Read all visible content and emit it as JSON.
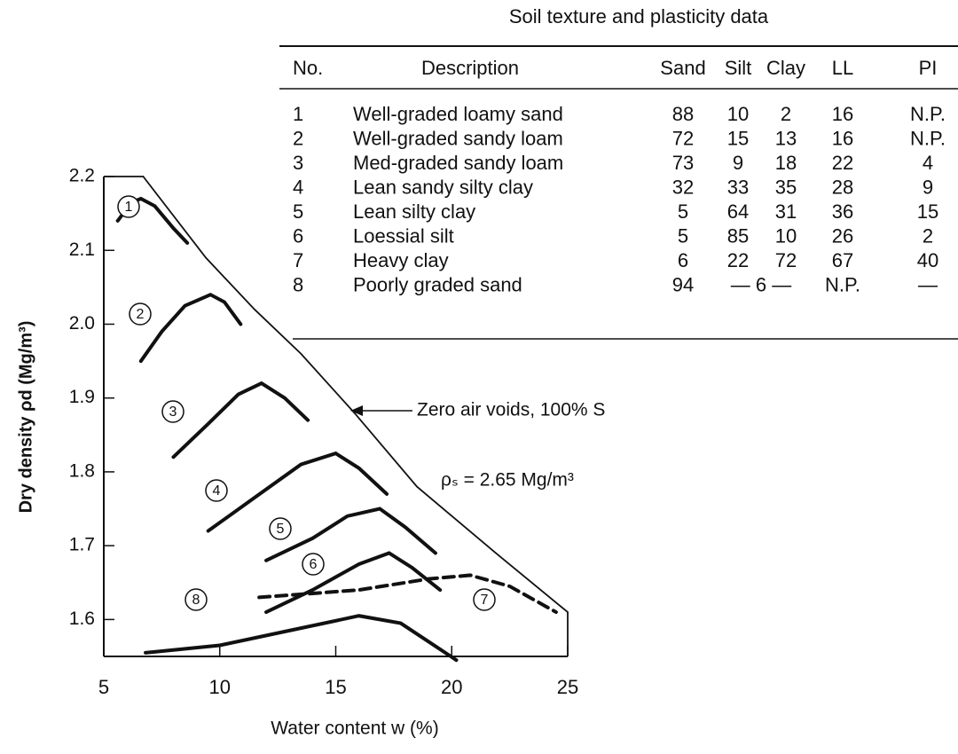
{
  "chart_data": {
    "type": "line",
    "xlabel": "Water content w (%)",
    "ylabel": "Dry density ρd (Mg/m³)",
    "annotation": "ρₛ = 2.65 Mg/m³",
    "xlim": [
      5,
      25
    ],
    "ylim": [
      1.55,
      2.2
    ],
    "xticks": [
      5,
      10,
      15,
      20,
      25
    ],
    "yticks": [
      1.6,
      1.7,
      1.8,
      1.9,
      {
        "value": 2,
        "label": "2.0"
      },
      2.1,
      2.2
    ],
    "series": [
      {
        "name": "1",
        "color": "#111",
        "x": [
          5.6,
          6.2,
          6.6,
          7.2,
          8.0,
          8.6
        ],
        "values": [
          2.14,
          2.165,
          2.17,
          2.16,
          2.13,
          2.11
        ]
      },
      {
        "name": "2",
        "color": "#111",
        "x": [
          6.6,
          7.5,
          8.5,
          9.6,
          10.2,
          10.9
        ],
        "values": [
          1.95,
          1.99,
          2.025,
          2.04,
          2.03,
          2.0
        ]
      },
      {
        "name": "3",
        "color": "#111",
        "x": [
          8,
          9.5,
          10.8,
          11.8,
          12.8,
          13.8
        ],
        "values": [
          1.82,
          1.865,
          1.905,
          1.92,
          1.9,
          1.87
        ]
      },
      {
        "name": "4",
        "color": "#111",
        "x": [
          9.5,
          11.5,
          13.5,
          15,
          16,
          17.2
        ],
        "values": [
          1.72,
          1.765,
          1.81,
          1.825,
          1.805,
          1.77
        ]
      },
      {
        "name": "5",
        "color": "#111",
        "x": [
          12,
          14,
          15.5,
          16.9,
          18,
          19.3
        ],
        "values": [
          1.68,
          1.71,
          1.74,
          1.75,
          1.725,
          1.69
        ]
      },
      {
        "name": "6",
        "color": "#111",
        "x": [
          12,
          14,
          16,
          17.3,
          18.3,
          19.5
        ],
        "values": [
          1.61,
          1.64,
          1.675,
          1.69,
          1.67,
          1.64
        ]
      },
      {
        "name": "7",
        "color": "#111",
        "dashed": true,
        "x": [
          11.7,
          16,
          19,
          20.8,
          22.5,
          24.5
        ],
        "values": [
          1.63,
          1.64,
          1.655,
          1.66,
          1.645,
          1.61
        ]
      },
      {
        "name": "8",
        "color": "#111",
        "x": [
          6.8,
          10,
          13,
          16,
          17.8,
          19,
          20.2
        ],
        "values": [
          1.555,
          1.565,
          1.585,
          1.605,
          1.595,
          1.57,
          1.545
        ]
      },
      {
        "name": "Zero air voids, 100% S",
        "color": "#111",
        "thin": true,
        "x": [
          6.7,
          9.4,
          11.5,
          13.5,
          15.8,
          18.5,
          21.9,
          25
        ],
        "values": [
          2.2,
          2.09,
          2.02,
          1.96,
          1.88,
          1.78,
          1.69,
          1.61
        ]
      }
    ]
  },
  "table": {
    "title": "Soil texture and plasticity data",
    "header": [
      "No.",
      "Description",
      "Sand",
      "Silt",
      "Clay",
      "LL",
      "PI"
    ],
    "rows": [
      [
        "1",
        "Well-graded loamy sand",
        "88",
        "10",
        "2",
        "16",
        "N.P."
      ],
      [
        "2",
        "Well-graded sandy loam",
        "72",
        "15",
        "13",
        "16",
        "N.P."
      ],
      [
        "3",
        "Med-graded sandy loam",
        "73",
        "9",
        "18",
        "22",
        "4"
      ],
      [
        "4",
        "Lean sandy silty clay",
        "32",
        "33",
        "35",
        "28",
        "9"
      ],
      [
        "5",
        "Lean silty clay",
        "5",
        "64",
        "31",
        "36",
        "15"
      ],
      [
        "6",
        "Loessial silt",
        "5",
        "85",
        "10",
        "26",
        "2"
      ],
      [
        "7",
        "Heavy clay",
        "6",
        "22",
        "72",
        "67",
        "40"
      ],
      [
        "8",
        "Poorly graded sand",
        "94",
        "— 6 —",
        "N.P.",
        "—"
      ]
    ]
  }
}
